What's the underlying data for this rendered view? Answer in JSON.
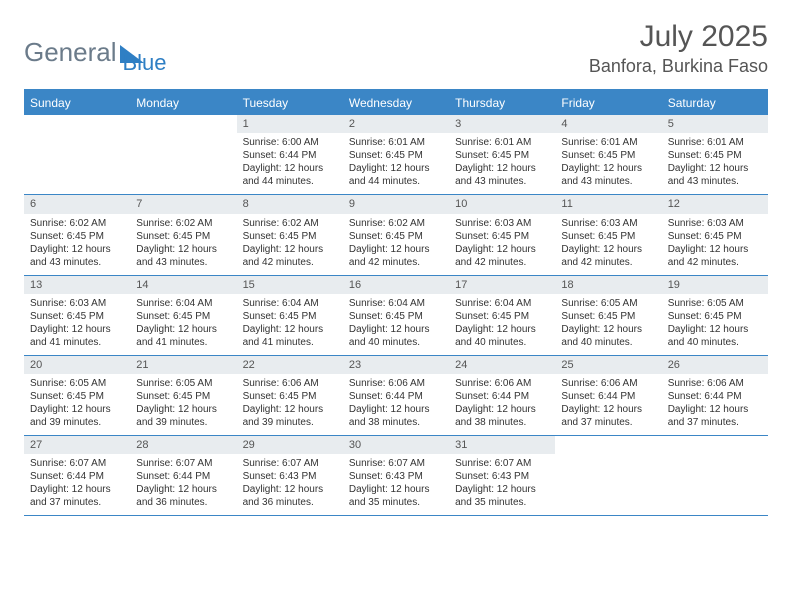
{
  "logo": {
    "text1": "General",
    "text2": "Blue"
  },
  "title": "July 2025",
  "location": "Banfora, Burkina Faso",
  "colors": {
    "header_bg": "#3b86c6",
    "header_text": "#ffffff",
    "daynum_bg": "#e8ecef",
    "border": "#3b86c6",
    "body_text": "#333333",
    "logo_gray": "#6b7b8a",
    "logo_blue": "#2f7fc4"
  },
  "daynames": [
    "Sunday",
    "Monday",
    "Tuesday",
    "Wednesday",
    "Thursday",
    "Friday",
    "Saturday"
  ],
  "weeks": [
    [
      {
        "day": "",
        "sunrise": "",
        "sunset": "",
        "daylight": "",
        "empty": true
      },
      {
        "day": "",
        "sunrise": "",
        "sunset": "",
        "daylight": "",
        "empty": true
      },
      {
        "day": "1",
        "sunrise": "Sunrise: 6:00 AM",
        "sunset": "Sunset: 6:44 PM",
        "daylight": "Daylight: 12 hours and 44 minutes."
      },
      {
        "day": "2",
        "sunrise": "Sunrise: 6:01 AM",
        "sunset": "Sunset: 6:45 PM",
        "daylight": "Daylight: 12 hours and 44 minutes."
      },
      {
        "day": "3",
        "sunrise": "Sunrise: 6:01 AM",
        "sunset": "Sunset: 6:45 PM",
        "daylight": "Daylight: 12 hours and 43 minutes."
      },
      {
        "day": "4",
        "sunrise": "Sunrise: 6:01 AM",
        "sunset": "Sunset: 6:45 PM",
        "daylight": "Daylight: 12 hours and 43 minutes."
      },
      {
        "day": "5",
        "sunrise": "Sunrise: 6:01 AM",
        "sunset": "Sunset: 6:45 PM",
        "daylight": "Daylight: 12 hours and 43 minutes."
      }
    ],
    [
      {
        "day": "6",
        "sunrise": "Sunrise: 6:02 AM",
        "sunset": "Sunset: 6:45 PM",
        "daylight": "Daylight: 12 hours and 43 minutes."
      },
      {
        "day": "7",
        "sunrise": "Sunrise: 6:02 AM",
        "sunset": "Sunset: 6:45 PM",
        "daylight": "Daylight: 12 hours and 43 minutes."
      },
      {
        "day": "8",
        "sunrise": "Sunrise: 6:02 AM",
        "sunset": "Sunset: 6:45 PM",
        "daylight": "Daylight: 12 hours and 42 minutes."
      },
      {
        "day": "9",
        "sunrise": "Sunrise: 6:02 AM",
        "sunset": "Sunset: 6:45 PM",
        "daylight": "Daylight: 12 hours and 42 minutes."
      },
      {
        "day": "10",
        "sunrise": "Sunrise: 6:03 AM",
        "sunset": "Sunset: 6:45 PM",
        "daylight": "Daylight: 12 hours and 42 minutes."
      },
      {
        "day": "11",
        "sunrise": "Sunrise: 6:03 AM",
        "sunset": "Sunset: 6:45 PM",
        "daylight": "Daylight: 12 hours and 42 minutes."
      },
      {
        "day": "12",
        "sunrise": "Sunrise: 6:03 AM",
        "sunset": "Sunset: 6:45 PM",
        "daylight": "Daylight: 12 hours and 42 minutes."
      }
    ],
    [
      {
        "day": "13",
        "sunrise": "Sunrise: 6:03 AM",
        "sunset": "Sunset: 6:45 PM",
        "daylight": "Daylight: 12 hours and 41 minutes."
      },
      {
        "day": "14",
        "sunrise": "Sunrise: 6:04 AM",
        "sunset": "Sunset: 6:45 PM",
        "daylight": "Daylight: 12 hours and 41 minutes."
      },
      {
        "day": "15",
        "sunrise": "Sunrise: 6:04 AM",
        "sunset": "Sunset: 6:45 PM",
        "daylight": "Daylight: 12 hours and 41 minutes."
      },
      {
        "day": "16",
        "sunrise": "Sunrise: 6:04 AM",
        "sunset": "Sunset: 6:45 PM",
        "daylight": "Daylight: 12 hours and 40 minutes."
      },
      {
        "day": "17",
        "sunrise": "Sunrise: 6:04 AM",
        "sunset": "Sunset: 6:45 PM",
        "daylight": "Daylight: 12 hours and 40 minutes."
      },
      {
        "day": "18",
        "sunrise": "Sunrise: 6:05 AM",
        "sunset": "Sunset: 6:45 PM",
        "daylight": "Daylight: 12 hours and 40 minutes."
      },
      {
        "day": "19",
        "sunrise": "Sunrise: 6:05 AM",
        "sunset": "Sunset: 6:45 PM",
        "daylight": "Daylight: 12 hours and 40 minutes."
      }
    ],
    [
      {
        "day": "20",
        "sunrise": "Sunrise: 6:05 AM",
        "sunset": "Sunset: 6:45 PM",
        "daylight": "Daylight: 12 hours and 39 minutes."
      },
      {
        "day": "21",
        "sunrise": "Sunrise: 6:05 AM",
        "sunset": "Sunset: 6:45 PM",
        "daylight": "Daylight: 12 hours and 39 minutes."
      },
      {
        "day": "22",
        "sunrise": "Sunrise: 6:06 AM",
        "sunset": "Sunset: 6:45 PM",
        "daylight": "Daylight: 12 hours and 39 minutes."
      },
      {
        "day": "23",
        "sunrise": "Sunrise: 6:06 AM",
        "sunset": "Sunset: 6:44 PM",
        "daylight": "Daylight: 12 hours and 38 minutes."
      },
      {
        "day": "24",
        "sunrise": "Sunrise: 6:06 AM",
        "sunset": "Sunset: 6:44 PM",
        "daylight": "Daylight: 12 hours and 38 minutes."
      },
      {
        "day": "25",
        "sunrise": "Sunrise: 6:06 AM",
        "sunset": "Sunset: 6:44 PM",
        "daylight": "Daylight: 12 hours and 37 minutes."
      },
      {
        "day": "26",
        "sunrise": "Sunrise: 6:06 AM",
        "sunset": "Sunset: 6:44 PM",
        "daylight": "Daylight: 12 hours and 37 minutes."
      }
    ],
    [
      {
        "day": "27",
        "sunrise": "Sunrise: 6:07 AM",
        "sunset": "Sunset: 6:44 PM",
        "daylight": "Daylight: 12 hours and 37 minutes."
      },
      {
        "day": "28",
        "sunrise": "Sunrise: 6:07 AM",
        "sunset": "Sunset: 6:44 PM",
        "daylight": "Daylight: 12 hours and 36 minutes."
      },
      {
        "day": "29",
        "sunrise": "Sunrise: 6:07 AM",
        "sunset": "Sunset: 6:43 PM",
        "daylight": "Daylight: 12 hours and 36 minutes."
      },
      {
        "day": "30",
        "sunrise": "Sunrise: 6:07 AM",
        "sunset": "Sunset: 6:43 PM",
        "daylight": "Daylight: 12 hours and 35 minutes."
      },
      {
        "day": "31",
        "sunrise": "Sunrise: 6:07 AM",
        "sunset": "Sunset: 6:43 PM",
        "daylight": "Daylight: 12 hours and 35 minutes."
      },
      {
        "day": "",
        "sunrise": "",
        "sunset": "",
        "daylight": "",
        "empty": true
      },
      {
        "day": "",
        "sunrise": "",
        "sunset": "",
        "daylight": "",
        "empty": true
      }
    ]
  ]
}
